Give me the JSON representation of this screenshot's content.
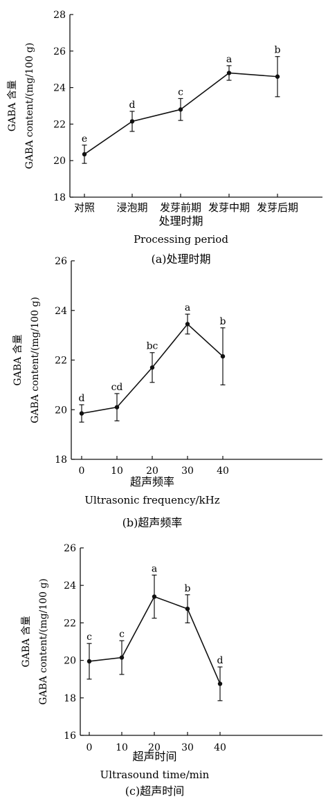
{
  "chart_data": [
    {
      "type": "line",
      "caption": "(a)处理时期",
      "xlabel_cn": "处理时期",
      "xlabel_en": "Processing period",
      "ylabel_cn": "GABA 含量",
      "ylabel_en": "GABA  content/(mg/100 g)",
      "categories": [
        "对照",
        "浸泡期",
        "发芽前期",
        "发芽中期",
        "发芽后期"
      ],
      "values": [
        20.35,
        22.15,
        22.8,
        24.8,
        24.6
      ],
      "errors": [
        0.5,
        0.55,
        0.6,
        0.4,
        1.1
      ],
      "significance": [
        "e",
        "d",
        "c",
        "a",
        "b"
      ],
      "ylim": [
        18,
        28
      ],
      "yticks": [
        18,
        20,
        22,
        24,
        26,
        28
      ]
    },
    {
      "type": "line",
      "caption": "(b)超声频率",
      "xlabel_cn": "超声频率",
      "xlabel_en": "Ultrasonic  frequency/kHz",
      "ylabel_cn": "GABA 含量",
      "ylabel_en": "GABA  content/(mg/100 g)",
      "categories": [
        "0",
        "10",
        "20",
        "30",
        "40"
      ],
      "values": [
        19.85,
        20.1,
        21.7,
        23.45,
        22.15
      ],
      "errors": [
        0.35,
        0.55,
        0.6,
        0.4,
        1.15
      ],
      "significance": [
        "d",
        "cd",
        "bc",
        "a",
        "b"
      ],
      "ylim": [
        18,
        26
      ],
      "yticks": [
        18,
        20,
        22,
        24,
        26
      ]
    },
    {
      "type": "line",
      "caption": "(c)超声时间",
      "xlabel_cn": "超声时间",
      "xlabel_en": "Ultrasound  time/min",
      "ylabel_cn": "GABA 含量",
      "ylabel_en": "GABA  content/(mg/100 g)",
      "categories": [
        "0",
        "10",
        "20",
        "30",
        "40"
      ],
      "values": [
        19.95,
        20.15,
        23.4,
        22.75,
        18.75
      ],
      "errors": [
        0.95,
        0.9,
        1.15,
        0.75,
        0.9
      ],
      "significance": [
        "c",
        "c",
        "a",
        "b",
        "d"
      ],
      "ylim": [
        16,
        26
      ],
      "yticks": [
        16,
        18,
        20,
        22,
        24,
        26
      ]
    }
  ]
}
